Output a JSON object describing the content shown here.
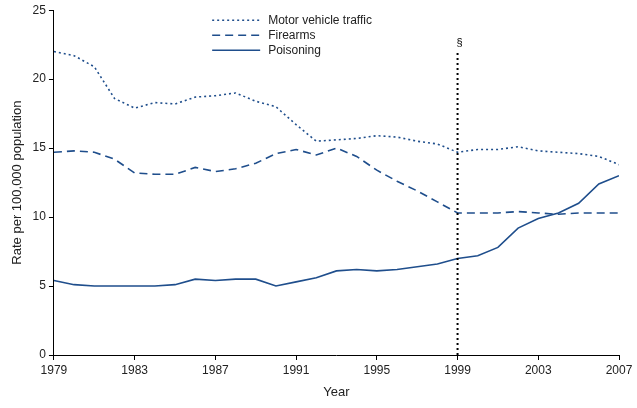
{
  "chart_data": {
    "type": "line",
    "x_label": "Year",
    "y_label": "Rate per 100,000 population",
    "x": [
      1979,
      1980,
      1981,
      1982,
      1983,
      1984,
      1985,
      1986,
      1987,
      1988,
      1989,
      1990,
      1991,
      1992,
      1993,
      1994,
      1995,
      1996,
      1997,
      1998,
      1999,
      2000,
      2001,
      2002,
      2003,
      2004,
      2005,
      2006,
      2007
    ],
    "series": [
      {
        "name": "Motor vehicle traffic",
        "color": "#1f4e8c",
        "line_style": "dotted",
        "values": [
          22.0,
          21.7,
          20.9,
          18.6,
          17.9,
          18.3,
          18.2,
          18.7,
          18.8,
          19.0,
          18.4,
          18.0,
          16.7,
          15.5,
          15.6,
          15.7,
          15.9,
          15.8,
          15.5,
          15.3,
          14.7,
          14.9,
          14.9,
          15.1,
          14.8,
          14.7,
          14.6,
          14.4,
          13.8
        ]
      },
      {
        "name": "Firearms",
        "color": "#1f4e8c",
        "line_style": "dashed",
        "values": [
          14.7,
          14.8,
          14.7,
          14.2,
          13.2,
          13.1,
          13.1,
          13.6,
          13.3,
          13.5,
          13.9,
          14.6,
          14.9,
          14.5,
          15.0,
          14.4,
          13.4,
          12.6,
          11.9,
          11.1,
          10.3,
          10.3,
          10.3,
          10.4,
          10.3,
          10.2,
          10.3,
          10.3,
          10.3
        ]
      },
      {
        "name": "Poisoning",
        "color": "#1f4e8c",
        "line_style": "solid",
        "values": [
          5.4,
          5.1,
          5.0,
          5.0,
          5.0,
          5.0,
          5.1,
          5.5,
          5.4,
          5.5,
          5.5,
          5.0,
          5.3,
          5.6,
          6.1,
          6.2,
          6.1,
          6.2,
          6.4,
          6.6,
          7.0,
          7.2,
          7.8,
          9.2,
          9.9,
          10.3,
          11.0,
          12.4,
          13.0
        ]
      }
    ],
    "xlim": [
      1979,
      2007
    ],
    "xticks": [
      1979,
      1983,
      1987,
      1991,
      1995,
      1999,
      2003,
      2007
    ],
    "ylim": [
      0,
      25
    ],
    "yticks": [
      0,
      5,
      10,
      15,
      20,
      25
    ],
    "grid": false,
    "legend": "top",
    "annotations": [
      {
        "x": 1999,
        "y": 22,
        "text": "§",
        "line_style": "dotted",
        "color": "#000000"
      }
    ]
  }
}
